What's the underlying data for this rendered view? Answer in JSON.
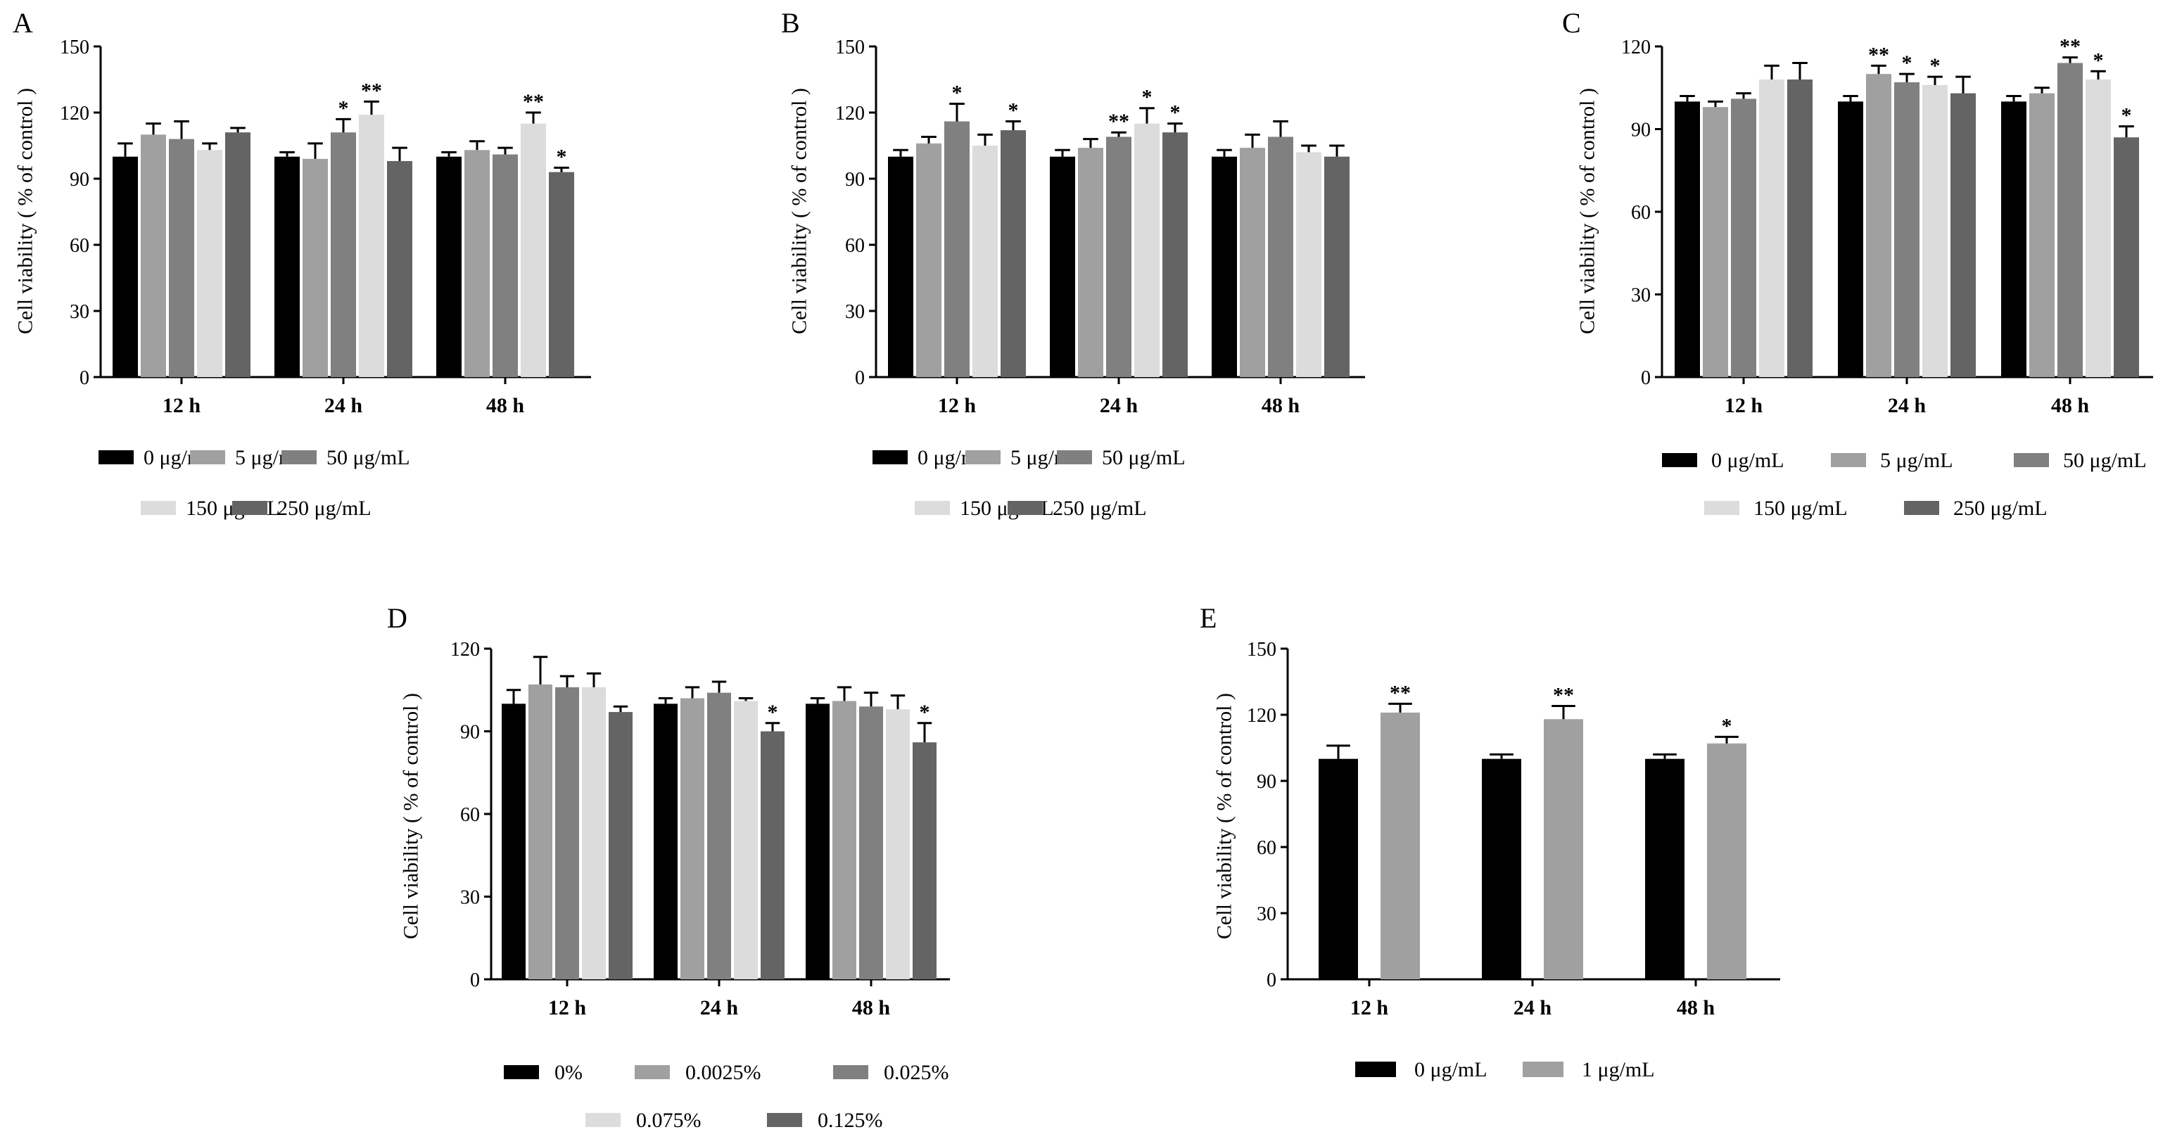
{
  "figure": {
    "palette": {
      "black": "#000000",
      "gray": "#a0a0a0",
      "mid_gray": "#808080",
      "light_gray": "#dcdcdc",
      "dark_gray": "#646464"
    }
  },
  "chart_data": [
    {
      "type": "bar",
      "panel": "A",
      "ylabel": "Cell viability ( % of control )",
      "ylim": [
        0,
        150
      ],
      "yticks": [
        0,
        30,
        60,
        90,
        120,
        150
      ],
      "categories": [
        "12 h",
        "24 h",
        "48 h"
      ],
      "series": [
        {
          "name": "0 μg/mL",
          "color": "#000000",
          "values": [
            100,
            100,
            100
          ],
          "errors": [
            6,
            2,
            2
          ],
          "stars": [
            "",
            "",
            ""
          ]
        },
        {
          "name": "5 μg/mL",
          "color": "#a0a0a0",
          "values": [
            110,
            99,
            103
          ],
          "errors": [
            5,
            7,
            4
          ],
          "stars": [
            "",
            "",
            ""
          ]
        },
        {
          "name": "50 μg/mL",
          "color": "#808080",
          "values": [
            108,
            111,
            101
          ],
          "errors": [
            8,
            6,
            3
          ],
          "stars": [
            "",
            "*",
            ""
          ]
        },
        {
          "name": "150 μg/mL",
          "color": "#dcdcdc",
          "values": [
            103,
            119,
            115
          ],
          "errors": [
            3,
            6,
            5
          ],
          "stars": [
            "",
            "**",
            "**"
          ]
        },
        {
          "name": "250 μg/mL",
          "color": "#646464",
          "values": [
            111,
            98,
            93
          ],
          "errors": [
            2,
            6,
            2
          ],
          "stars": [
            "",
            "",
            "*"
          ]
        }
      ]
    },
    {
      "type": "bar",
      "panel": "B",
      "ylabel": "Cell viability ( % of control )",
      "ylim": [
        0,
        150
      ],
      "yticks": [
        0,
        30,
        60,
        90,
        120,
        150
      ],
      "categories": [
        "12 h",
        "24 h",
        "48 h"
      ],
      "series": [
        {
          "name": "0 μg/mL",
          "color": "#000000",
          "values": [
            100,
            100,
            100
          ],
          "errors": [
            3,
            3,
            3
          ],
          "stars": [
            "",
            "",
            ""
          ]
        },
        {
          "name": "5 μg/mL",
          "color": "#a0a0a0",
          "values": [
            106,
            104,
            104
          ],
          "errors": [
            3,
            4,
            6
          ],
          "stars": [
            "",
            "",
            ""
          ]
        },
        {
          "name": "50 μg/mL",
          "color": "#808080",
          "values": [
            116,
            109,
            109
          ],
          "errors": [
            8,
            2,
            7
          ],
          "stars": [
            "*",
            "**",
            ""
          ]
        },
        {
          "name": "150 μg/mL",
          "color": "#dcdcdc",
          "values": [
            105,
            115,
            102
          ],
          "errors": [
            5,
            7,
            3
          ],
          "stars": [
            "",
            "*",
            ""
          ]
        },
        {
          "name": "250 μg/mL",
          "color": "#646464",
          "values": [
            112,
            111,
            100
          ],
          "errors": [
            4,
            4,
            5
          ],
          "stars": [
            "*",
            "*",
            ""
          ]
        }
      ]
    },
    {
      "type": "bar",
      "panel": "C",
      "ylabel": "Cell viability ( % of control )",
      "ylim": [
        0,
        120
      ],
      "yticks": [
        0,
        30,
        60,
        90,
        120
      ],
      "categories": [
        "12 h",
        "24 h",
        "48 h"
      ],
      "series": [
        {
          "name": "0 μg/mL",
          "color": "#000000",
          "values": [
            100,
            100,
            100
          ],
          "errors": [
            2,
            2,
            2
          ],
          "stars": [
            "",
            "",
            ""
          ]
        },
        {
          "name": "5 μg/mL",
          "color": "#a0a0a0",
          "values": [
            98,
            110,
            103
          ],
          "errors": [
            2,
            3,
            2
          ],
          "stars": [
            "",
            "**",
            ""
          ]
        },
        {
          "name": "50 μg/mL",
          "color": "#808080",
          "values": [
            101,
            107,
            114
          ],
          "errors": [
            2,
            3,
            2
          ],
          "stars": [
            "",
            "*",
            "**"
          ]
        },
        {
          "name": "150 μg/mL",
          "color": "#dcdcdc",
          "values": [
            108,
            106,
            108
          ],
          "errors": [
            5,
            3,
            3
          ],
          "stars": [
            "",
            "*",
            "*"
          ]
        },
        {
          "name": "250 μg/mL",
          "color": "#646464",
          "values": [
            108,
            103,
            87
          ],
          "errors": [
            6,
            6,
            4
          ],
          "stars": [
            "",
            "",
            "*"
          ]
        }
      ]
    },
    {
      "type": "bar",
      "panel": "D",
      "ylabel": "Cell viability ( % of control )",
      "ylim": [
        0,
        120
      ],
      "yticks": [
        0,
        30,
        60,
        90,
        120
      ],
      "categories": [
        "12 h",
        "24 h",
        "48 h"
      ],
      "series": [
        {
          "name": "0%",
          "color": "#000000",
          "values": [
            100,
            100,
            100
          ],
          "errors": [
            5,
            2,
            2
          ],
          "stars": [
            "",
            "",
            ""
          ]
        },
        {
          "name": "0.0025%",
          "color": "#a0a0a0",
          "values": [
            107,
            102,
            101
          ],
          "errors": [
            10,
            4,
            5
          ],
          "stars": [
            "",
            "",
            ""
          ]
        },
        {
          "name": "0.025%",
          "color": "#808080",
          "values": [
            106,
            104,
            99
          ],
          "errors": [
            4,
            4,
            5
          ],
          "stars": [
            "",
            "",
            ""
          ]
        },
        {
          "name": "0.075%",
          "color": "#dcdcdc",
          "values": [
            106,
            101,
            98
          ],
          "errors": [
            5,
            1,
            5
          ],
          "stars": [
            "",
            "",
            ""
          ]
        },
        {
          "name": "0.125%",
          "color": "#646464",
          "values": [
            97,
            90,
            86
          ],
          "errors": [
            2,
            3,
            7
          ],
          "stars": [
            "",
            "*",
            "*"
          ]
        }
      ]
    },
    {
      "type": "bar",
      "panel": "E",
      "ylabel": "Cell viability ( % of control )",
      "ylim": [
        0,
        150
      ],
      "yticks": [
        0,
        30,
        60,
        90,
        120,
        150
      ],
      "categories": [
        "12 h",
        "24 h",
        "48 h"
      ],
      "series": [
        {
          "name": "0 μg/mL",
          "color": "#000000",
          "values": [
            100,
            100,
            100
          ],
          "errors": [
            6,
            2,
            2
          ],
          "stars": [
            "",
            "",
            ""
          ]
        },
        {
          "name": "1 μg/mL",
          "color": "#a0a0a0",
          "values": [
            121,
            118,
            107
          ],
          "errors": [
            4,
            6,
            3
          ],
          "stars": [
            "**",
            "**",
            "*"
          ]
        }
      ]
    }
  ]
}
